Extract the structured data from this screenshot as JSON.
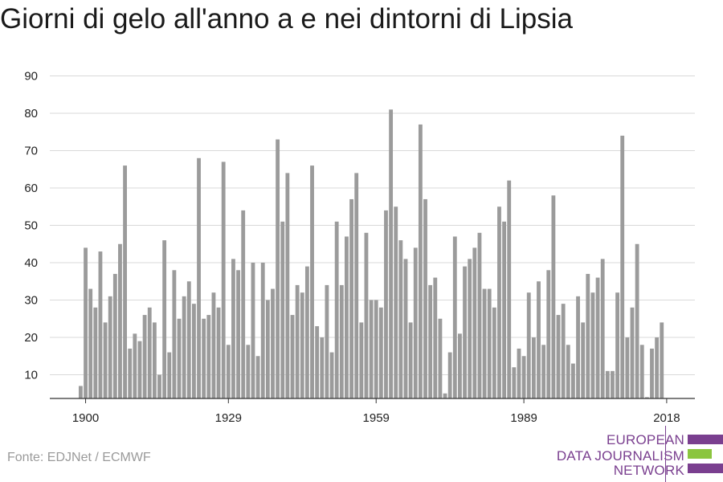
{
  "title": "Giorni di gelo all'anno a e nei dintorni di Lipsia",
  "source": "Fonte: EDJNet / ECMWF",
  "logo": {
    "lines": [
      "EUROPEAN",
      "DATA JOURNALISM",
      "NETWORK"
    ],
    "colors": {
      "purple": "#7a3f8f",
      "green": "#8bc53f"
    }
  },
  "chart_data": {
    "type": "bar",
    "ylim": [
      3,
      90
    ],
    "yticks": [
      10,
      20,
      30,
      40,
      50,
      60,
      70,
      80,
      90
    ],
    "xticks": [
      1900,
      1929,
      1959,
      1989,
      2018
    ],
    "bar_color": "#9b9b9b",
    "grid": true,
    "x": [
      1899,
      1900,
      1901,
      1902,
      1903,
      1904,
      1905,
      1906,
      1907,
      1908,
      1909,
      1910,
      1911,
      1912,
      1913,
      1914,
      1915,
      1916,
      1917,
      1918,
      1919,
      1920,
      1921,
      1922,
      1923,
      1924,
      1925,
      1926,
      1927,
      1928,
      1929,
      1930,
      1931,
      1932,
      1933,
      1934,
      1935,
      1936,
      1937,
      1938,
      1939,
      1940,
      1941,
      1942,
      1943,
      1944,
      1945,
      1946,
      1947,
      1948,
      1949,
      1950,
      1951,
      1952,
      1953,
      1954,
      1955,
      1956,
      1957,
      1958,
      1959,
      1960,
      1961,
      1962,
      1963,
      1964,
      1965,
      1966,
      1967,
      1968,
      1969,
      1970,
      1971,
      1972,
      1973,
      1974,
      1975,
      1976,
      1977,
      1978,
      1979,
      1980,
      1981,
      1982,
      1983,
      1984,
      1985,
      1986,
      1987,
      1988,
      1989,
      1990,
      1991,
      1992,
      1993,
      1994,
      1995,
      1996,
      1997,
      1998,
      1999,
      2000,
      2001,
      2002,
      2003,
      2004,
      2005,
      2006,
      2007,
      2008,
      2009,
      2010,
      2011,
      2012,
      2013,
      2014,
      2015,
      2016,
      2017,
      2018
    ],
    "values": [
      7,
      44,
      33,
      28,
      43,
      24,
      31,
      37,
      45,
      66,
      17,
      21,
      19,
      26,
      28,
      24,
      10,
      46,
      16,
      38,
      25,
      31,
      35,
      29,
      68,
      25,
      26,
      32,
      28,
      67,
      18,
      41,
      38,
      54,
      18,
      40,
      15,
      40,
      30,
      33,
      73,
      51,
      64,
      26,
      34,
      32,
      39,
      66,
      23,
      20,
      34,
      16,
      51,
      34,
      47,
      57,
      64,
      24,
      48,
      30,
      30,
      28,
      54,
      81,
      55,
      46,
      41,
      24,
      44,
      77,
      57,
      34,
      36,
      25,
      5,
      16,
      47,
      21,
      39,
      41,
      44,
      48,
      33,
      33,
      28,
      55,
      51,
      62,
      12,
      17,
      15,
      32,
      20,
      35,
      18,
      38,
      58,
      26,
      29,
      18,
      13,
      31,
      24,
      37,
      32,
      36,
      41,
      11,
      11,
      32,
      74,
      20,
      28,
      45,
      18,
      4,
      17,
      20,
      24,
      3
    ]
  }
}
